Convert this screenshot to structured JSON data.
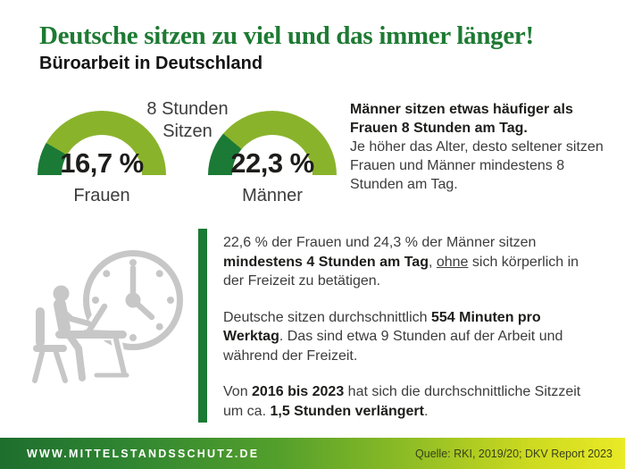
{
  "header": {
    "title": "Deutsche sitzen zu viel und das immer länger!",
    "subtitle": "Büroarbeit in Deutschland"
  },
  "chart_data": {
    "type": "gauge",
    "title": "8 Stunden Sitzen",
    "center_label_lines": [
      "8 Stunden",
      "Sitzen"
    ],
    "categories": [
      "Frauen",
      "Männer"
    ],
    "values": [
      16.7,
      22.3
    ],
    "value_labels": [
      "16,7 %",
      "22,3 %"
    ],
    "unit": "%",
    "range": [
      0,
      100
    ],
    "fill_color": "#1b7a35",
    "track_color": "#8ab32c"
  },
  "side_note": {
    "bold": "Männer sitzen etwas häufiger als Frauen 8 Stunden am Tag.",
    "regular": "Je höher das Alter, desto seltener sitzen Frauen und Männer mindestens 8 Stunden am Tag."
  },
  "facts": {
    "paragraphs": [
      {
        "segments": [
          {
            "text": "22,6 % der Frauen und 24,3 % der Männer sitzen "
          },
          {
            "text": "mindestens 4 Stunden am Tag",
            "bold": true
          },
          {
            "text": ", "
          },
          {
            "text": "ohne",
            "underline": true
          },
          {
            "text": " sich körperlich in der Freizeit zu betätigen."
          }
        ]
      },
      {
        "segments": [
          {
            "text": "Deutsche sitzen durchschnittlich "
          },
          {
            "text": "554 Minuten pro Werktag",
            "bold": true
          },
          {
            "text": ". Das sind etwa 9 Stunden auf der Arbeit und während der Freizeit."
          }
        ]
      },
      {
        "segments": [
          {
            "text": "Von "
          },
          {
            "text": "2016 bis 2023",
            "bold": true
          },
          {
            "text": " hat sich die durchschnittliche Sitzzeit um ca. "
          },
          {
            "text": "1,5 Stunden verlängert",
            "bold": true
          },
          {
            "text": "."
          }
        ]
      }
    ]
  },
  "icon": {
    "name": "person-at-desk-with-clock-icon",
    "color": "#c7c7c7"
  },
  "footer": {
    "website": "WWW.MITTELSTANDSSCHUTZ.DE",
    "source": "Quelle: RKI, 2019/20; DKV Report 2023"
  },
  "colors": {
    "title_green": "#1e7a33",
    "dark_green": "#1b7a35",
    "light_green": "#8ab32c",
    "text_dark": "#1d1d1b",
    "text_body": "#3c3c3c",
    "icon_gray": "#c7c7c7",
    "footer_gradient_start": "#1e6e2e",
    "footer_gradient_end": "#eaea26"
  }
}
